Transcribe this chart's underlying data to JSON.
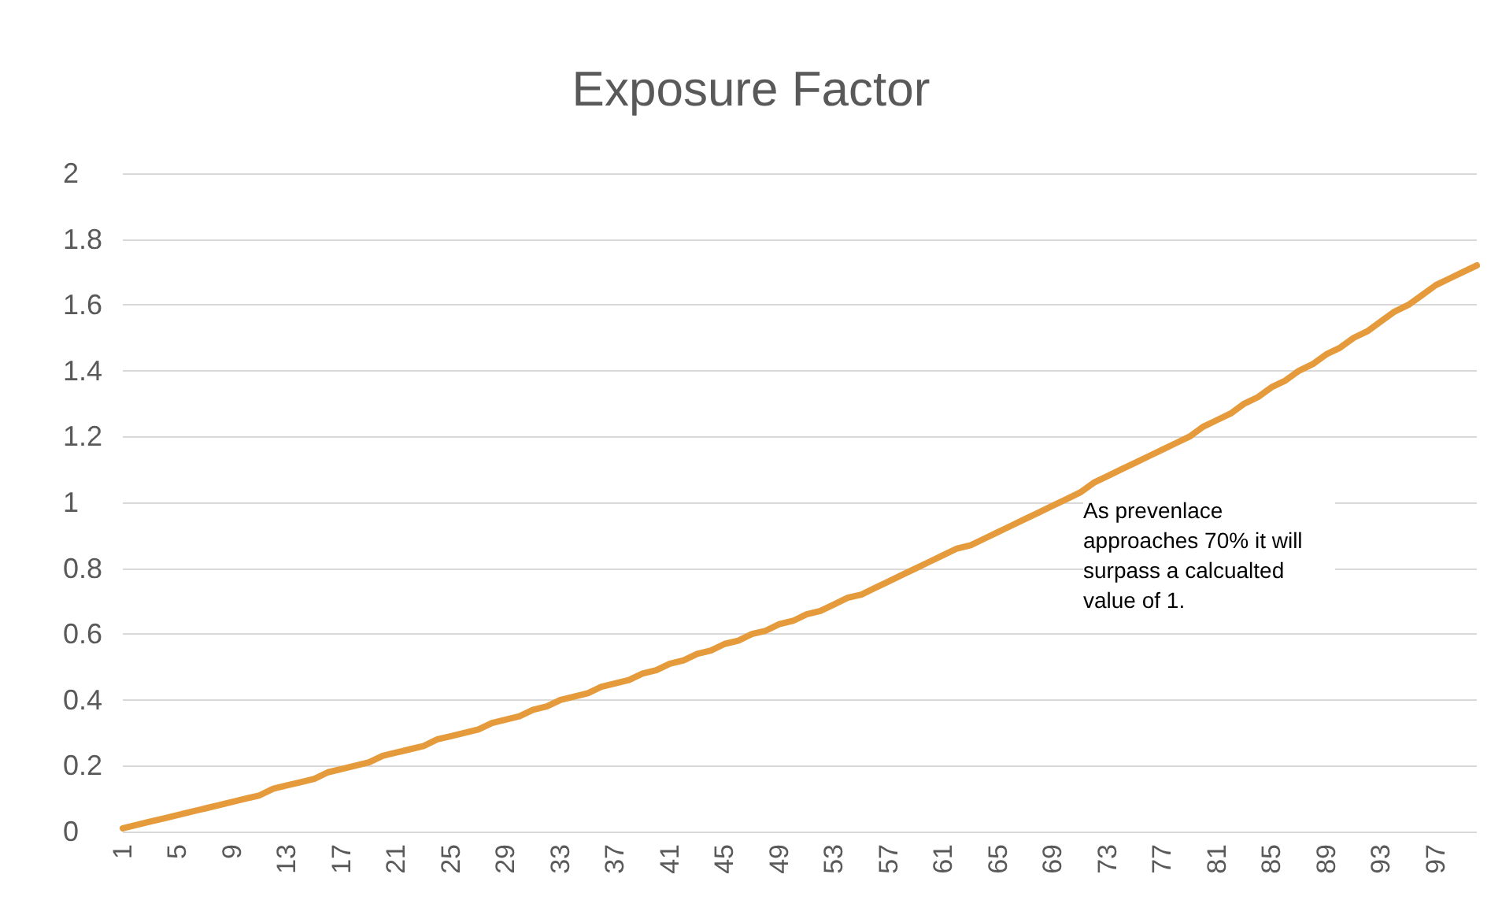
{
  "chart_data": {
    "type": "line",
    "title": "Exposure Factor",
    "categories": [
      "1",
      null,
      null,
      null,
      "5",
      null,
      null,
      null,
      "9",
      null,
      null,
      null,
      "13",
      null,
      null,
      null,
      "17",
      null,
      null,
      null,
      "21",
      null,
      null,
      null,
      "25",
      null,
      null,
      null,
      "29",
      null,
      null,
      null,
      "33",
      null,
      null,
      null,
      "37",
      null,
      null,
      null,
      "41",
      null,
      null,
      null,
      "45",
      null,
      null,
      null,
      "49",
      null,
      null,
      null,
      "53",
      null,
      null,
      null,
      "57",
      null,
      null,
      null,
      "61",
      null,
      null,
      null,
      "65",
      null,
      null,
      null,
      "69",
      null,
      null,
      null,
      "73",
      null,
      null,
      null,
      "77",
      null,
      null,
      null,
      "81",
      null,
      null,
      null,
      "85",
      null,
      null,
      null,
      "89",
      null,
      null,
      null,
      "93",
      null,
      null,
      null,
      "97",
      null,
      null,
      null
    ],
    "series": [
      {
        "color": "#e59b3b",
        "values": [
          0.01,
          0.02,
          0.03,
          0.04,
          0.05,
          0.06,
          0.07,
          0.08,
          0.09,
          0.1,
          0.11,
          0.13,
          0.14,
          0.15,
          0.16,
          0.18,
          0.19,
          0.2,
          0.21,
          0.23,
          0.24,
          0.25,
          0.26,
          0.28,
          0.29,
          0.3,
          0.31,
          0.33,
          0.34,
          0.35,
          0.37,
          0.38,
          0.4,
          0.41,
          0.42,
          0.44,
          0.45,
          0.46,
          0.48,
          0.49,
          0.51,
          0.52,
          0.54,
          0.55,
          0.57,
          0.58,
          0.6,
          0.61,
          0.63,
          0.64,
          0.66,
          0.67,
          0.69,
          0.71,
          0.72,
          0.74,
          0.76,
          0.78,
          0.8,
          0.82,
          0.84,
          0.86,
          0.87,
          0.89,
          0.91,
          0.93,
          0.95,
          0.97,
          0.99,
          1.01,
          1.03,
          1.06,
          1.08,
          1.1,
          1.12,
          1.14,
          1.16,
          1.18,
          1.2,
          1.23,
          1.25,
          1.27,
          1.3,
          1.32,
          1.35,
          1.37,
          1.4,
          1.42,
          1.45,
          1.47,
          1.5,
          1.52,
          1.55,
          1.58,
          1.6,
          1.63,
          1.66,
          1.68,
          1.7,
          1.72
        ]
      }
    ],
    "ylim": [
      0,
      2
    ],
    "yticks": [
      0,
      0.2,
      0.4,
      0.6,
      0.8,
      1,
      1.2,
      1.4,
      1.6,
      1.8,
      2
    ],
    "grid": "y",
    "marker": "none",
    "line_style": "solid",
    "annotations": [
      "As prevenlace approaches 70% it will surpass a calcualted value of 1."
    ]
  }
}
